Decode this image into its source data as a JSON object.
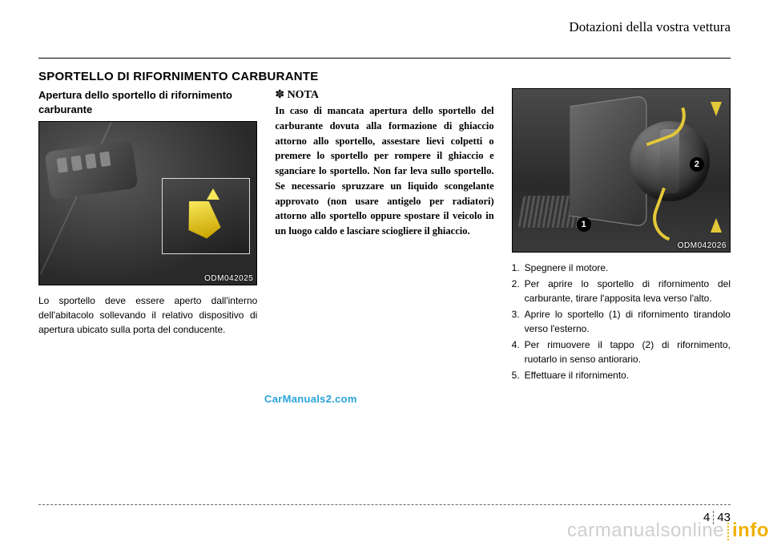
{
  "header": {
    "chapter_title": "Dotazioni della vostra vettura"
  },
  "section": {
    "title": "SPORTELLO DI RIFORNIMENTO CARBURANTE"
  },
  "col1": {
    "subhead": "Apertura dello sportello di rifornimento carburante",
    "figure_code": "ODM042025",
    "body": "Lo sportello deve essere aperto dall'interno dell'abitacolo sollevando il relativo dispositivo di apertura ubicato sulla porta del conducente."
  },
  "col2": {
    "nota_marker": "✽",
    "nota_label": "NOTA",
    "nota_body": "In caso di mancata apertura dello sportello del carburante dovuta alla formazione di ghiaccio attorno allo sportello, assestare lievi colpetti o premere lo sportello per rompere il ghiaccio e sganciare lo sportello. Non far leva sullo sportello. Se necessario spruzzare un liquido scongelante approvato (non usare antigelo per radiatori) attorno allo sportello oppure spostare il veicolo in un luogo caldo e lasciare sciogliere il ghiaccio."
  },
  "col3": {
    "figure_code": "ODM042026",
    "steps": [
      "Spegnere il motore.",
      "Per aprire lo sportello di rifornimento del carburante, tirare l'apposita leva verso l'alto.",
      "Aprire lo sportello (1) di rifornimento tirandolo verso l'esterno.",
      "Per rimuovere il tappo (2) di rifornimento, ruotarlo in senso antiorario.",
      "Effettuare il rifornimento."
    ]
  },
  "watermark": "CarManuals2.com",
  "page_number": {
    "section": "4",
    "page": "43"
  },
  "footer_brand": {
    "left": "carmanualsonline",
    "right": "info"
  },
  "colors": {
    "watermark": "#2aa3d9",
    "brand_accent": "#f0b000",
    "brand_grey": "#cfcfcf",
    "yellow_arrow": "#e3c838"
  }
}
